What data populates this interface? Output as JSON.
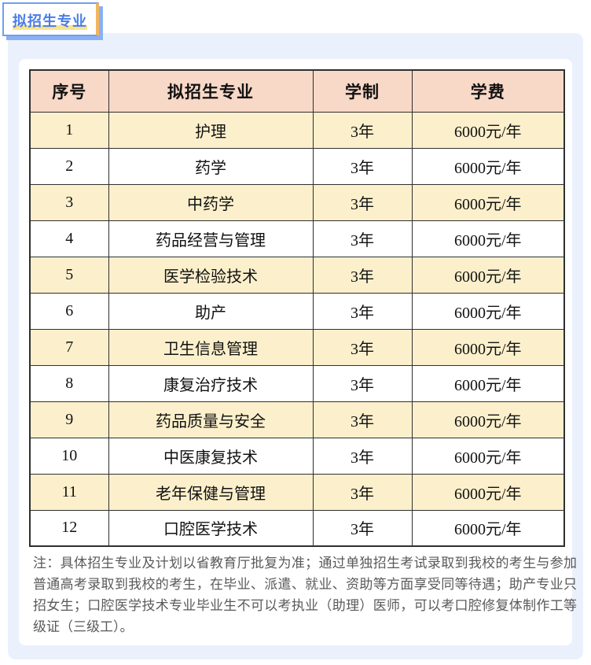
{
  "tab": {
    "label": "拟招生专业"
  },
  "table": {
    "headers": [
      "序号",
      "拟招生专业",
      "学制",
      "学费"
    ],
    "rows": [
      {
        "no": "1",
        "major": "护理",
        "duration": "3年",
        "tuition": "6000元/年"
      },
      {
        "no": "2",
        "major": "药学",
        "duration": "3年",
        "tuition": "6000元/年"
      },
      {
        "no": "3",
        "major": "中药学",
        "duration": "3年",
        "tuition": "6000元/年"
      },
      {
        "no": "4",
        "major": "药品经营与管理",
        "duration": "3年",
        "tuition": "6000元/年"
      },
      {
        "no": "5",
        "major": "医学检验技术",
        "duration": "3年",
        "tuition": "6000元/年"
      },
      {
        "no": "6",
        "major": "助产",
        "duration": "3年",
        "tuition": "6000元/年"
      },
      {
        "no": "7",
        "major": "卫生信息管理",
        "duration": "3年",
        "tuition": "6000元/年"
      },
      {
        "no": "8",
        "major": "康复治疗技术",
        "duration": "3年",
        "tuition": "6000元/年"
      },
      {
        "no": "9",
        "major": "药品质量与安全",
        "duration": "3年",
        "tuition": "6000元/年"
      },
      {
        "no": "10",
        "major": "中医康复技术",
        "duration": "3年",
        "tuition": "6000元/年"
      },
      {
        "no": "11",
        "major": "老年保健与管理",
        "duration": "3年",
        "tuition": "6000元/年"
      },
      {
        "no": "12",
        "major": "口腔医学技术",
        "duration": "3年",
        "tuition": "6000元/年"
      }
    ]
  },
  "note": "注：具体招生专业及计划以省教育厅批复为准；通过单独招生考试录取到我校的考生与参加普通高考录取到我校的考生，在毕业、派遣、就业、资助等方面享受同等待遇；助产专业只招女生；口腔医学技术专业毕业生不可以考执业（助理）医师，可以考口腔修复体制作工等级证（三级工）。",
  "colors": {
    "accent_blue": "#4a7ce8",
    "tab_border": "#6f9ff0",
    "tab_shadow_blue": "#8ab0f3",
    "tab_shadow_yellow": "#f2b55d",
    "highlight_yellow": "#fbe38a",
    "panel_bg": "#eaf1fc",
    "header_bg": "#f8d8c7",
    "row_alt_bg": "#fcf0cc",
    "table_border": "#2f2f2f",
    "note_text": "#5a5a5a"
  }
}
